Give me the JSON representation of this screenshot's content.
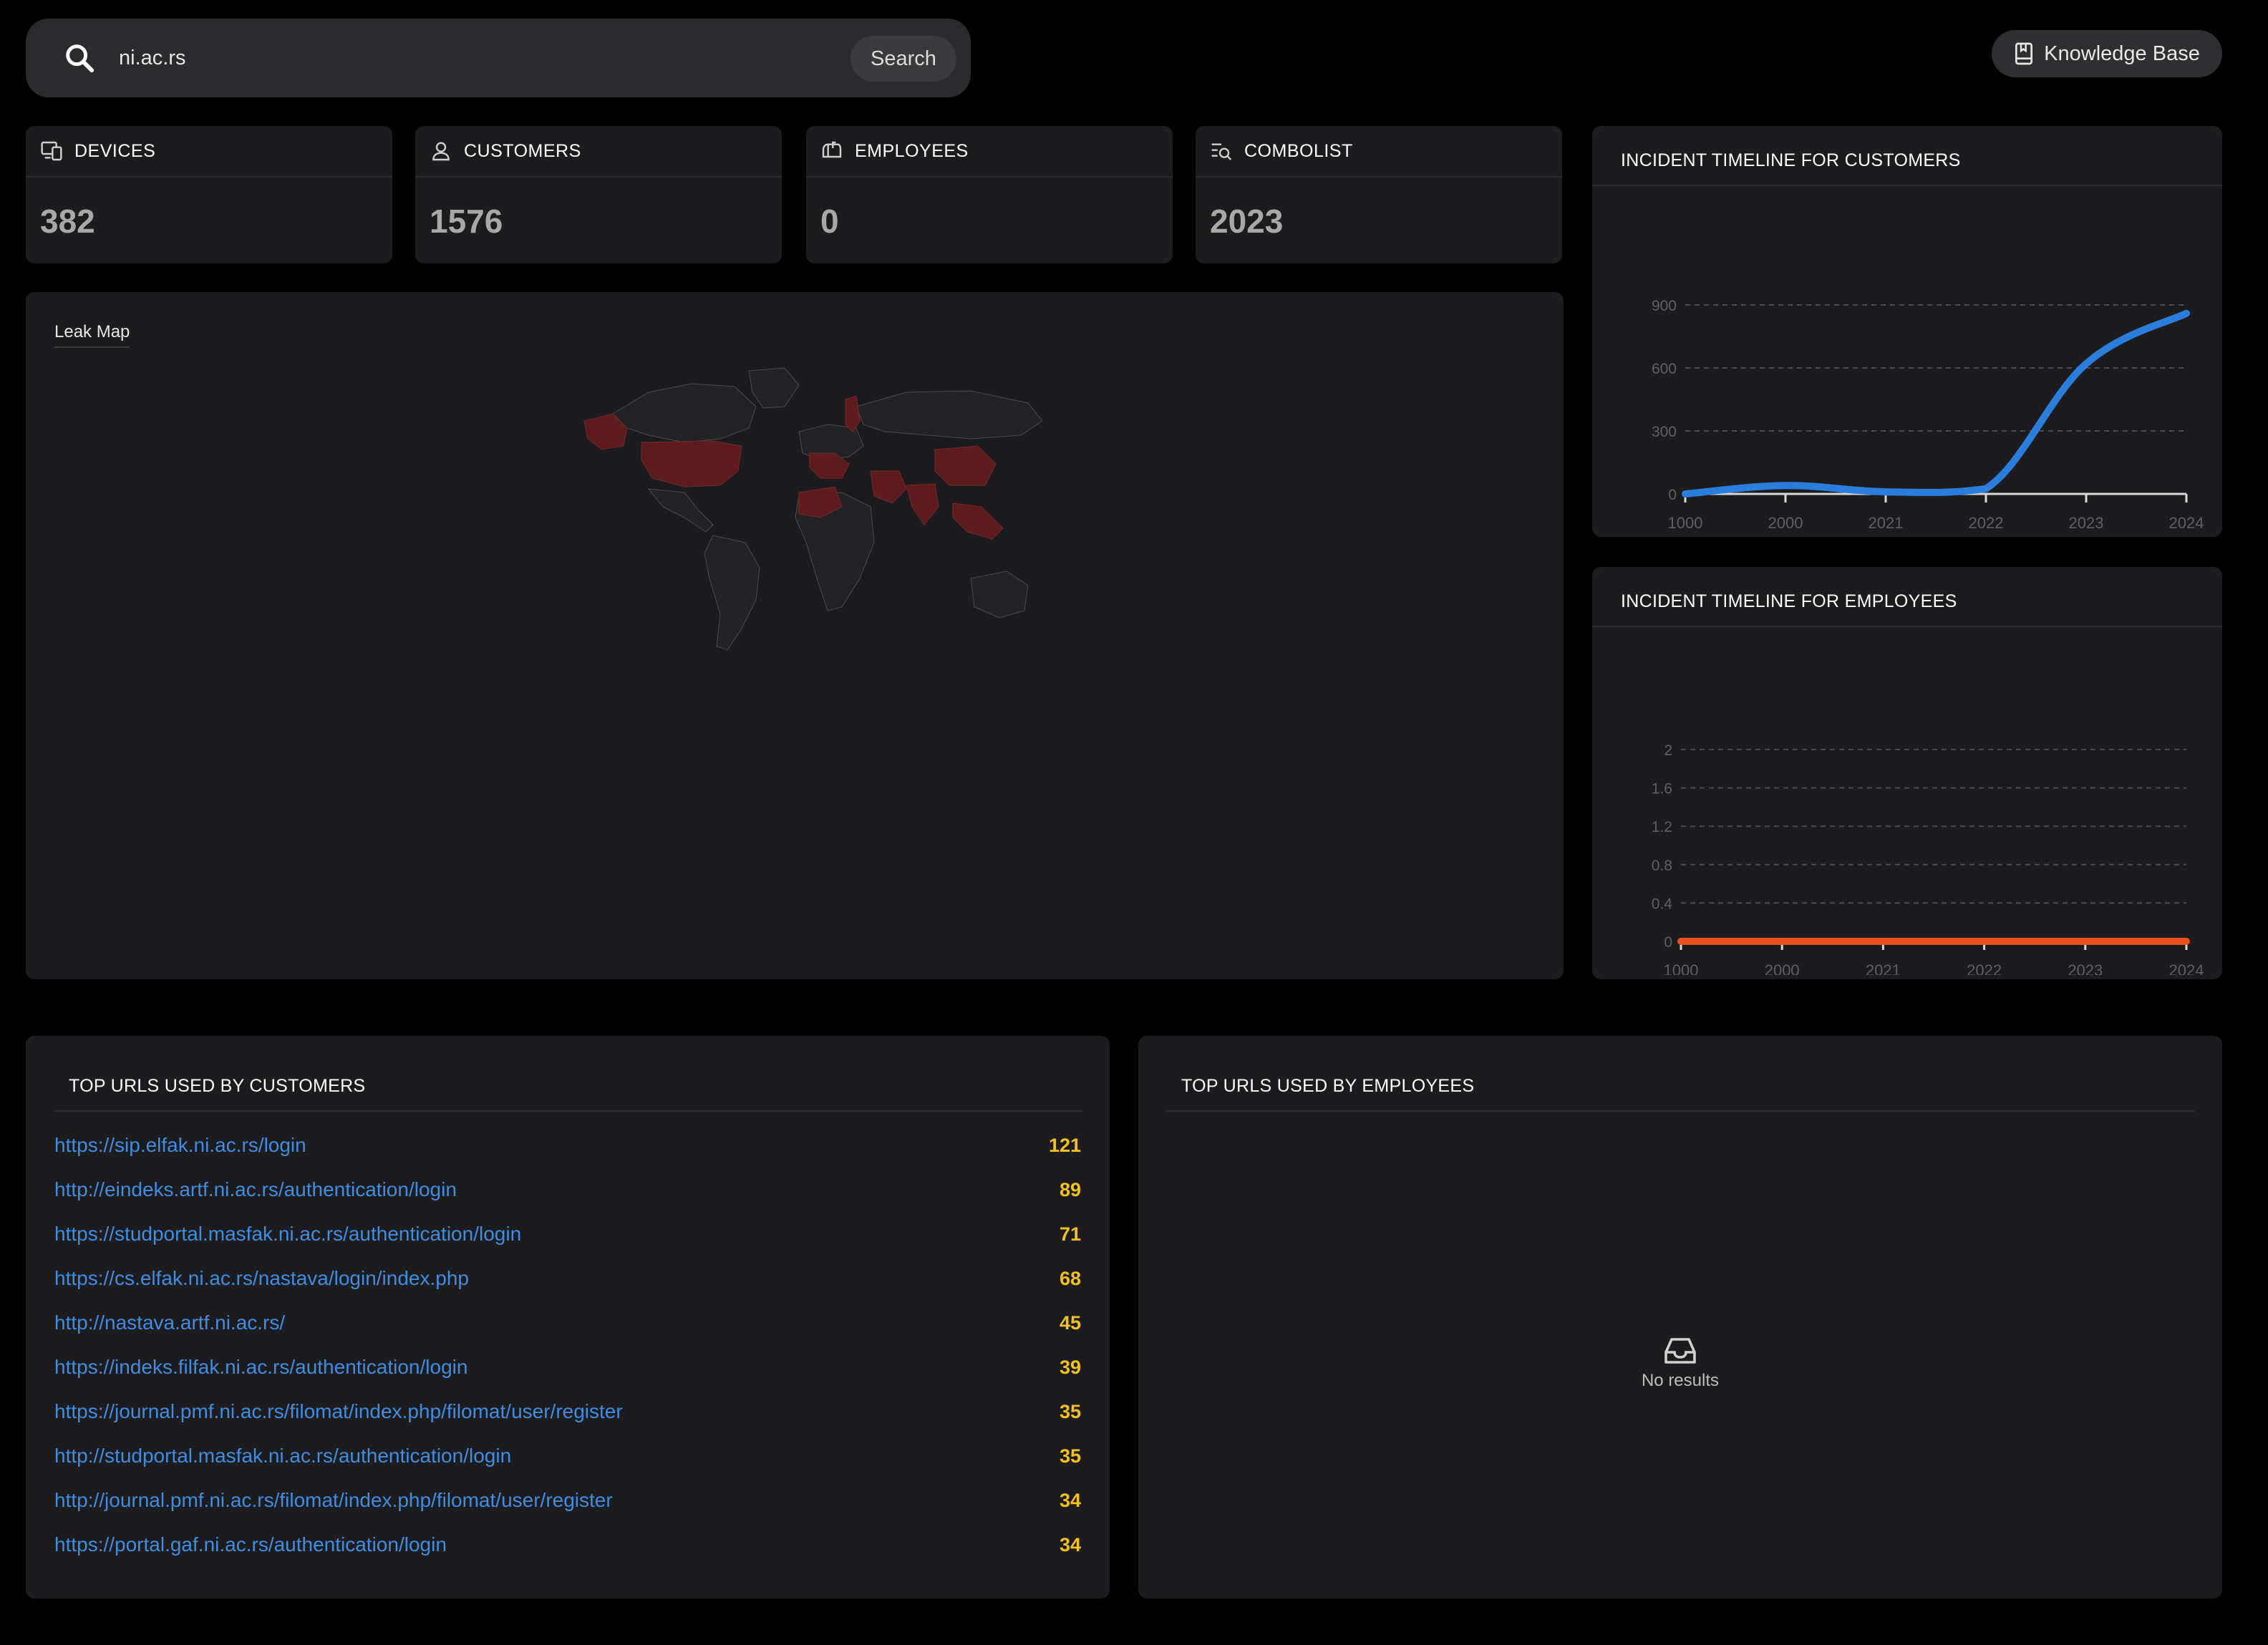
{
  "search": {
    "value": "ni.ac.rs",
    "placeholder": "",
    "button_label": "Search"
  },
  "knowledge_base": {
    "label": "Knowledge Base",
    "icon": "book-icon"
  },
  "stats": [
    {
      "label": "DEVICES",
      "value": "382",
      "icon": "devices-icon"
    },
    {
      "label": "CUSTOMERS",
      "value": "1576",
      "icon": "user-icon"
    },
    {
      "label": "EMPLOYEES",
      "value": "0",
      "icon": "mailbox-icon"
    },
    {
      "label": "COMBOLIST",
      "value": "2023",
      "icon": "list-search-icon"
    }
  ],
  "leak_map": {
    "title": "Leak Map",
    "highlight_color": "#5e1a1c",
    "highlighted_regions": [
      "Alaska",
      "United States",
      "Western Europe",
      "Scandinavia",
      "Middle East",
      "India",
      "China",
      "Southeast Asia",
      "North Africa"
    ]
  },
  "customers_chart": {
    "title": "INCIDENT TIMELINE FOR CUSTOMERS"
  },
  "employees_chart": {
    "title": "INCIDENT TIMELINE FOR EMPLOYEES"
  },
  "chart_data": [
    {
      "type": "line",
      "title": "INCIDENT TIMELINE FOR CUSTOMERS",
      "categories": [
        "1000",
        "2000",
        "2021",
        "2022",
        "2023",
        "2024"
      ],
      "series": [
        {
          "color": "#2a7ddb",
          "values": [
            0,
            40,
            10,
            25,
            620,
            860
          ]
        }
      ],
      "yticks": [
        0,
        300,
        600,
        900
      ],
      "ylim": [
        0,
        900
      ],
      "grid": true
    },
    {
      "type": "line",
      "title": "INCIDENT TIMELINE FOR EMPLOYEES",
      "categories": [
        "1000",
        "2000",
        "2021",
        "2022",
        "2023",
        "2024"
      ],
      "series": [
        {
          "color": "#e8501e",
          "values": [
            0,
            0,
            0,
            0,
            0,
            0
          ]
        }
      ],
      "yticks": [
        0,
        0.4,
        0.8,
        1.2,
        1.6,
        2
      ],
      "ylim": [
        0,
        2
      ],
      "grid": true
    }
  ],
  "customer_urls": {
    "title": "TOP URLS USED BY CUSTOMERS",
    "rows": [
      {
        "url": "https://sip.elfak.ni.ac.rs/login",
        "count": "121"
      },
      {
        "url": "http://eindeks.artf.ni.ac.rs/authentication/login",
        "count": "89"
      },
      {
        "url": "https://studportal.masfak.ni.ac.rs/authentication/login",
        "count": "71"
      },
      {
        "url": "https://cs.elfak.ni.ac.rs/nastava/login/index.php",
        "count": "68"
      },
      {
        "url": "http://nastava.artf.ni.ac.rs/",
        "count": "45"
      },
      {
        "url": "https://indeks.filfak.ni.ac.rs/authentication/login",
        "count": "39"
      },
      {
        "url": "https://journal.pmf.ni.ac.rs/filomat/index.php/filomat/user/register",
        "count": "35"
      },
      {
        "url": "http://studportal.masfak.ni.ac.rs/authentication/login",
        "count": "35"
      },
      {
        "url": "http://journal.pmf.ni.ac.rs/filomat/index.php/filomat/user/register",
        "count": "34"
      },
      {
        "url": "https://portal.gaf.ni.ac.rs/authentication/login",
        "count": "34"
      }
    ]
  },
  "employee_urls": {
    "title": "TOP URLS USED BY EMPLOYEES",
    "empty_text": "No results"
  }
}
